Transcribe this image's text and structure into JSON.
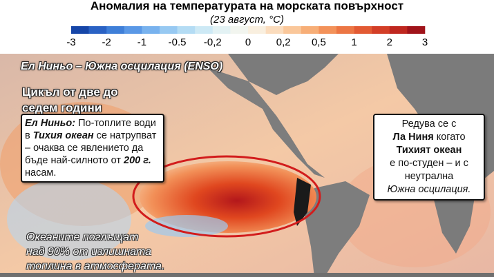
{
  "header": {
    "title": "Аномалия на температурата на морската повърхност",
    "subtitle": "(23 август, °C)"
  },
  "legend": {
    "ticks": [
      "-3",
      "-2",
      "-1",
      "-0.5",
      "-0,2",
      "0",
      "0,2",
      "0,5",
      "1",
      "2",
      "3"
    ],
    "colors": [
      "#1646a8",
      "#2a62c4",
      "#3f7fd8",
      "#5a98e6",
      "#78b2ee",
      "#97c9f2",
      "#b4dcf4",
      "#cde9f5",
      "#e3f2f4",
      "#f2f5ef",
      "#f9efdf",
      "#fbdcbd",
      "#fac79a",
      "#f7ae77",
      "#f3925a",
      "#ec7644",
      "#e25a33",
      "#d33e27",
      "#bf271f",
      "#a0131a"
    ]
  },
  "map": {
    "label": "Ел Ниньо – Южна осцилация (ENSO)",
    "cycle": [
      "Цикъл от две до",
      "седем години"
    ],
    "el_nino_box": {
      "parts": [
        "Ел Ниньо:",
        " По-топлите води в ",
        "Тихия океан",
        " се натрупват – очаква се явлението да бъде най-силното от ",
        "200 г.",
        " насам."
      ]
    },
    "la_nina_box": {
      "parts": [
        "Редува се с",
        "Ла Ниня",
        "когато",
        "Тихият океан",
        "е по-студен – и с неутрална",
        "Южна осцилация."
      ]
    },
    "oceans_note": [
      "Океаните поглъщат",
      "над 90% от излишната",
      "топлина в атмосферата."
    ]
  }
}
